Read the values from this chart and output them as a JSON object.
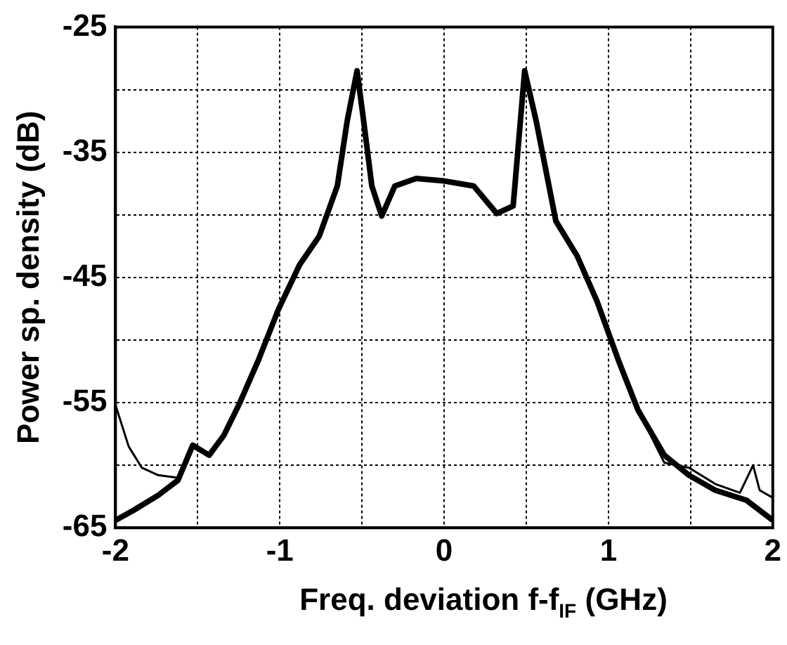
{
  "chart_data": {
    "type": "line",
    "xlabel": "Freq. deviation f-f$_{IF}$ (GHz)",
    "ylabel": "Power sp. density (dB)",
    "xlim": [
      -2,
      2
    ],
    "ylim": [
      -65,
      -25
    ],
    "xticks": [
      -2,
      {
        "value": -1.5,
        "label": null
      },
      -1,
      {
        "value": -0.5,
        "label": null
      },
      0,
      {
        "value": 0.5,
        "label": null
      },
      1,
      {
        "value": 1.5,
        "label": null
      },
      2
    ],
    "yticks": [
      -65,
      {
        "value": -60,
        "label": null
      },
      -55,
      {
        "value": -50,
        "label": null
      },
      -45,
      {
        "value": -40,
        "label": null
      },
      -35,
      {
        "value": -30,
        "label": null
      },
      -25
    ],
    "grid": true,
    "legend": false,
    "marker": "none",
    "line_style": "solid",
    "series": [
      {
        "color": "#000000",
        "x": [
          -2,
          -1.89,
          -1.74,
          -1.62,
          -1.53,
          -1.43,
          -1.34,
          -1.25,
          -1.13,
          -1.01,
          -0.88,
          -0.76,
          -0.65,
          -0.59,
          -0.53,
          -0.49,
          -0.44,
          -0.38,
          -0.3,
          -0.17,
          0,
          0.18,
          0.32,
          0.42,
          0.49,
          0.56,
          0.68,
          0.81,
          0.93,
          1.06,
          1.18,
          1.34,
          1.49,
          1.65,
          1.84,
          2
        ],
        "values": [
          -64.4,
          -63.6,
          -62.4,
          -61.2,
          -58.4,
          -59.2,
          -57.6,
          -55.2,
          -51.6,
          -47.6,
          -44,
          -41.7,
          -37.7,
          -32.5,
          -28.5,
          -32.5,
          -37.7,
          -40.1,
          -37.7,
          -37.1,
          -37.3,
          -37.7,
          -39.9,
          -39.3,
          -28.5,
          -32.5,
          -40.5,
          -43.3,
          -46.9,
          -51.6,
          -55.6,
          -59.2,
          -60.8,
          -62,
          -62.8,
          -64.4
        ]
      },
      {
        "color": "#000000",
        "x": [
          -2,
          -1.92,
          -1.84,
          -1.74,
          -1.62,
          -1.53,
          -1.43,
          -1.34,
          -1.25,
          -1.13,
          -1.01,
          -0.88,
          -0.76,
          -0.65,
          -0.59,
          -0.53,
          -0.49,
          -0.44,
          -0.38,
          -0.3,
          -0.17,
          0,
          0.18,
          0.32,
          0.42,
          0.49,
          0.56,
          0.68,
          0.81,
          0.93,
          1.06,
          1.18,
          1.34,
          1.49,
          1.65,
          1.8,
          1.88,
          1.92,
          2
        ],
        "values": [
          -55.2,
          -58.5,
          -60.2,
          -60.8,
          -61,
          -58.6,
          -59.2,
          -57.6,
          -55.2,
          -51.6,
          -47.6,
          -44,
          -41.7,
          -37.7,
          -32.5,
          -28.5,
          -32.5,
          -37.7,
          -40.1,
          -37.7,
          -37.1,
          -37.3,
          -37.7,
          -39.9,
          -39.3,
          -28.5,
          -32.5,
          -40.5,
          -43.3,
          -46.9,
          -51.6,
          -55.6,
          -59.8,
          -60.2,
          -61.5,
          -62.2,
          -60,
          -62,
          -62.6
        ]
      }
    ]
  }
}
